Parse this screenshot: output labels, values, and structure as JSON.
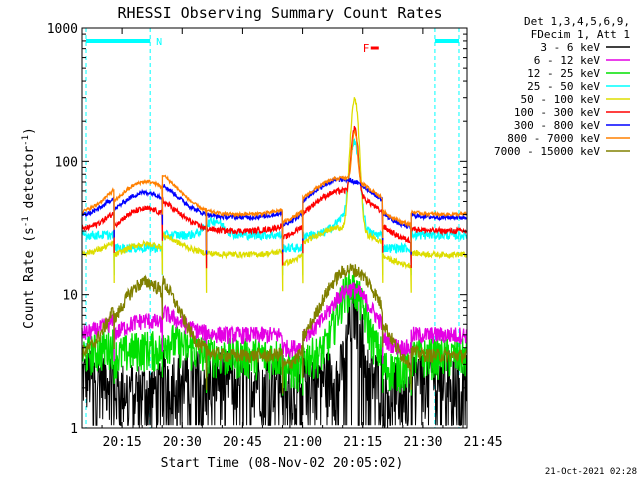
{
  "chart_data": {
    "type": "line",
    "title": "RHESSI Observing Summary Count Rates",
    "xlabel": "Start Time (08-Nov-02 20:05:02)",
    "ylabel_main": "Count Rate (s",
    "ylabel_sup1": "-1",
    "ylabel_mid": " detector",
    "ylabel_sup2": "-1",
    "ylabel_end": ")",
    "yscale": "log",
    "xlim_minutes": [
      5,
      101
    ],
    "ylim": [
      1,
      1000
    ],
    "x_ticks": [
      {
        "m": 15,
        "label": "20:15"
      },
      {
        "m": 30,
        "label": "20:30"
      },
      {
        "m": 45,
        "label": "20:45"
      },
      {
        "m": 60,
        "label": "21:00"
      },
      {
        "m": 75,
        "label": "21:15"
      },
      {
        "m": 90,
        "label": "21:30"
      },
      {
        "m": 105,
        "label": "21:45"
      }
    ],
    "y_ticks": [
      {
        "v": 1,
        "label": "1"
      },
      {
        "v": 10,
        "label": "10"
      },
      {
        "v": 100,
        "label": "100"
      },
      {
        "v": 1000,
        "label": "1000"
      }
    ],
    "legend_header": [
      "Det 1,3,4,5,6,9,",
      "FDecim 1, Att 1"
    ],
    "legend_position": "right",
    "series": [
      {
        "name": "3 - 6 keV",
        "color": "#000000",
        "key": "s1"
      },
      {
        "name": "6 - 12 keV",
        "color": "#e400e4",
        "key": "s2"
      },
      {
        "name": "12 - 25 keV",
        "color": "#00e000",
        "key": "s3"
      },
      {
        "name": "25 - 50 keV",
        "color": "#00ffff",
        "key": "s4"
      },
      {
        "name": "50 - 100 keV",
        "color": "#dddd00",
        "key": "s5"
      },
      {
        "name": "100 - 300 keV",
        "color": "#ff0000",
        "key": "s6"
      },
      {
        "name": "300 - 800 keV",
        "color": "#0000ff",
        "key": "s7"
      },
      {
        "name": "800 - 7000 keV",
        "color": "#ff8000",
        "key": "s8"
      },
      {
        "name": "7000 - 15000 keV",
        "color": "#808000",
        "key": "s9"
      }
    ],
    "night_intervals_minutes": [
      [
        6,
        22
      ],
      [
        93,
        99
      ]
    ],
    "night_label": "N",
    "flare_label": "F",
    "flare_marker_minutes": [
      77,
      79
    ],
    "saa_boundaries_minutes": [
      5,
      13,
      25,
      36,
      55,
      60,
      80,
      87,
      99
    ],
    "footer_date": "21-Oct-2021 02:28"
  }
}
